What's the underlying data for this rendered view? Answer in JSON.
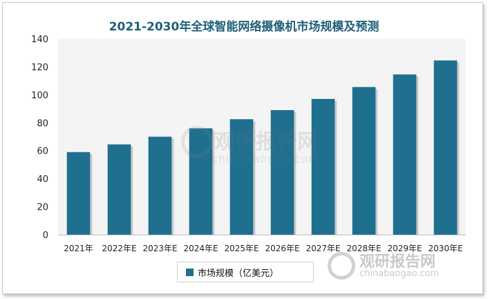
{
  "chart_data": {
    "type": "bar",
    "title": "2021-2030年全球智能网络摄像机市场规模及预测",
    "categories": [
      "2021年",
      "2022年E",
      "2023年E",
      "2024年E",
      "2025年E",
      "2026年E",
      "2027年E",
      "2028年E",
      "2029年E",
      "2030年E"
    ],
    "series": [
      {
        "name": "市场规模（亿美元）",
        "values": [
          59,
          64.5,
          70,
          76,
          82.5,
          89,
          97,
          105.5,
          114.5,
          124.5
        ]
      }
    ],
    "yticks": [
      "0",
      "20",
      "40",
      "60",
      "80",
      "100",
      "120",
      "140"
    ],
    "ylim": [
      0,
      140
    ],
    "grid": false,
    "legend_position": "bottom",
    "color": "#1f6f8f"
  },
  "watermark": {
    "brand": "观研报告网",
    "url": "chinabaogao.com"
  }
}
